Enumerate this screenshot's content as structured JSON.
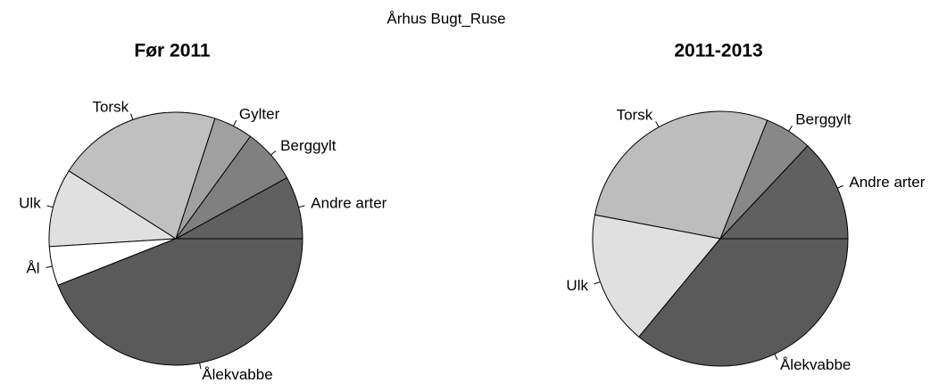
{
  "title": "Århus Bugt_Ruse",
  "chart_data": [
    {
      "type": "pie",
      "title": "Før 2011",
      "categories": [
        "Andre arter",
        "Berggylt",
        "Gylter",
        "Torsk",
        "Ulk",
        "Ål",
        "Ålekvabbe"
      ],
      "values": [
        8,
        7,
        5,
        21,
        10,
        5,
        44
      ],
      "colors": [
        "#606060",
        "#808080",
        "#a0a0a0",
        "#c0c0c0",
        "#e0e0e0",
        "#ffffff",
        "#5a5a5a"
      ]
    },
    {
      "type": "pie",
      "title": "2011-2013",
      "categories": [
        "Andre arter",
        "Berggylt",
        "Torsk",
        "Ulk",
        "Ålekvabbe"
      ],
      "values": [
        13,
        6,
        28,
        17,
        36
      ],
      "colors": [
        "#606060",
        "#888888",
        "#bdbdbd",
        "#e0e0e0",
        "#5a5a5a"
      ]
    }
  ]
}
